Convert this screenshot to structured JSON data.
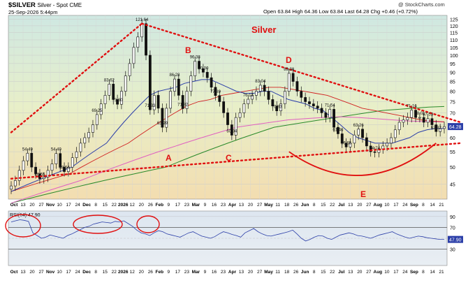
{
  "header": {
    "symbol": "$SILVER",
    "desc": "Silver - Spot CME",
    "date": "25-Sep-2026 5:44pm",
    "ohlc": "Open 63.84  High 64.36  Low 63.84  Last 64.28  Chg +0.46 (+0.72%)",
    "watermark": "@ StockCharts.com"
  },
  "legend": [
    {
      "label": "$SILVER (Daily) 64.28",
      "color": "#000000"
    },
    {
      "label": "MA(50) 63.52",
      "color": "#2b3ea8"
    },
    {
      "label": "MA(100) 66.21",
      "color": "#d02020"
    },
    {
      "label": "MA(200) 72.79",
      "color": "#2a8a2a"
    },
    {
      "label": "EMA(165) 66.12",
      "color": "#e060c0"
    },
    {
      "label": "Volume undef",
      "color": "#888888"
    }
  ],
  "annotations": {
    "title": "Silver",
    "points": [
      "A",
      "B",
      "C",
      "D",
      "E"
    ]
  },
  "chart_data": [
    {
      "type": "candlestick",
      "title": "Silver",
      "yscale": "log",
      "ylim": [
        41,
        128
      ],
      "yticks": [
        45,
        50,
        55,
        60,
        65,
        70,
        75,
        80,
        85,
        90,
        95,
        100,
        105,
        110,
        115,
        120,
        125
      ],
      "last_price": 64.28,
      "x_tick_labels": [
        "Oct",
        "13",
        "20",
        "27",
        "Nov",
        "10",
        "17",
        "24",
        "Dec",
        "8",
        "15",
        "22",
        "2026",
        "12",
        "20",
        "26",
        "Feb",
        "9",
        "17",
        "23",
        "Mar",
        "9",
        "16",
        "23",
        "Apr",
        "13",
        "20",
        "27",
        "May",
        "11",
        "18",
        "26",
        "Jun",
        "8",
        "15",
        "22",
        "Jul",
        "13",
        "20",
        "27",
        "Aug",
        "10",
        "17",
        "24",
        "Sep",
        "8",
        "14",
        "21"
      ],
      "price_labels": [
        54.49,
        54.4,
        48.64,
        46.55,
        83.62,
        69.25,
        73.8,
        121.64,
        71.33,
        63.99,
        86.28,
        71.82,
        96.38,
        90.0,
        77.89,
        60.94,
        76.13,
        83.04,
        70.83,
        89.38,
        71.54,
        61.46,
        56.65,
        63.26,
        54.74,
        71.16,
        68.01,
        67.53,
        62.32
      ],
      "closes": [
        44.5,
        46,
        49,
        52,
        54.5,
        50,
        48,
        46.55,
        47,
        49,
        51,
        54.4,
        50,
        48.64,
        50,
        53,
        55,
        58,
        60,
        62,
        65,
        69.25,
        74,
        78,
        83.62,
        76,
        73.8,
        80,
        88,
        95,
        105,
        112,
        121.64,
        100,
        71.33,
        78,
        72,
        63.99,
        72,
        80,
        86.28,
        78,
        71.82,
        80,
        88,
        96.38,
        92,
        90,
        87,
        82,
        77.89,
        75,
        70,
        65,
        60.94,
        68,
        70,
        74,
        76.13,
        78,
        80,
        83.04,
        80,
        76,
        73,
        70.83,
        74,
        80,
        89.38,
        85,
        80,
        77,
        75,
        74,
        73,
        72,
        70,
        68,
        71.54,
        64,
        61.46,
        58,
        56.65,
        58,
        61,
        63.26,
        60,
        57,
        55,
        54.74,
        56,
        57,
        58,
        60,
        63,
        66,
        67,
        68,
        71.16,
        68,
        68.01,
        66,
        67.53,
        65,
        62.32,
        63.5,
        64.28
      ],
      "ma50": [
        43,
        44,
        45,
        46,
        47,
        48,
        49,
        50,
        52,
        54,
        56,
        58,
        62,
        66,
        70,
        74,
        78,
        80,
        81,
        82,
        84,
        85,
        86,
        86,
        84,
        82,
        80,
        79,
        79,
        80,
        80,
        78,
        76,
        75,
        74,
        72,
        71,
        68,
        65,
        62,
        60,
        59,
        58,
        58,
        58,
        59,
        60,
        62,
        63,
        63.5,
        63.52
      ],
      "ma100": [
        43,
        44,
        45,
        46,
        47,
        48,
        50,
        52,
        54,
        56,
        58,
        61,
        64,
        67,
        70,
        73,
        75,
        76,
        78,
        79,
        80,
        81,
        82,
        82,
        81,
        80,
        79,
        78,
        76,
        74,
        72,
        71,
        70,
        69,
        68,
        67,
        66.5,
        66.21
      ],
      "ma200": [
        40,
        41,
        42,
        43,
        44,
        45,
        46,
        47,
        48,
        49,
        50,
        52,
        54,
        56,
        58,
        60,
        62,
        64,
        65,
        66,
        67,
        68,
        69,
        70,
        71,
        71.5,
        72,
        72.5,
        72.79
      ],
      "ema165": [
        40,
        41.5,
        43,
        44.5,
        46,
        48,
        50,
        52,
        54,
        56,
        58,
        60,
        62,
        64,
        65,
        66,
        67,
        67.5,
        68,
        68.3,
        68,
        67.5,
        67,
        66.5,
        66.3,
        66.12
      ],
      "trendlines": [
        {
          "from": [
            0,
            46.55
          ],
          "to": [
            110,
            58
          ]
        },
        {
          "from": [
            0,
            62
          ],
          "to": [
            32,
            121.64
          ]
        },
        {
          "from": [
            32,
            121.64
          ],
          "to": [
            110,
            66
          ]
        }
      ]
    },
    {
      "type": "line",
      "title": "RSI(14) 47.90",
      "ylim": [
        0,
        100
      ],
      "yticks": [
        30,
        50,
        70,
        90
      ],
      "bands": [
        30,
        70
      ],
      "last_value": 47.9,
      "values": [
        80,
        82,
        84,
        83,
        81,
        60,
        55,
        50,
        52,
        56,
        54,
        52,
        50,
        55,
        58,
        62,
        66,
        70,
        72,
        76,
        78,
        80,
        79,
        78,
        81,
        80,
        82,
        77,
        72,
        65,
        60,
        58,
        55,
        60,
        64,
        62,
        58,
        56,
        54,
        52,
        56,
        60,
        62,
        58,
        54,
        52,
        50,
        53,
        58,
        62,
        60,
        57,
        55,
        52,
        60,
        64,
        68,
        62,
        58,
        55,
        54,
        56,
        58,
        60,
        62,
        65,
        58,
        50,
        45,
        48,
        52,
        55,
        54,
        50,
        48,
        52,
        56,
        58,
        60,
        58,
        55,
        54,
        52,
        50,
        53,
        56,
        58,
        60,
        62,
        58,
        55,
        52,
        50,
        52,
        54,
        53,
        51,
        50,
        49,
        48,
        47.9
      ]
    }
  ]
}
